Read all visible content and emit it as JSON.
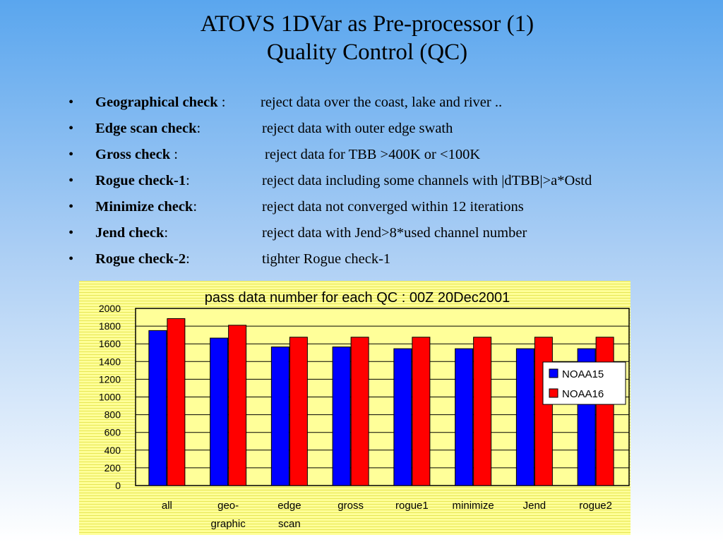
{
  "slide": {
    "title_line1": "ATOVS 1DVar as Pre-processor (1)",
    "title_line2": "Quality Control (QC)"
  },
  "bullets": [
    {
      "term": "Geographical check",
      "sep": " : ",
      "desc": "reject data over the coast, lake and river .."
    },
    {
      "term": "Edge scan check",
      "sep": ":",
      "desc": "reject data with outer edge swath"
    },
    {
      "term": "Gross check",
      "sep": " :",
      "desc": "reject data for TBB >400K or <100K"
    },
    {
      "term": "Rogue check-1",
      "sep": ":",
      "desc": "reject data including some channels with  |dTBB|>a*Ostd"
    },
    {
      "term": "Minimize check",
      "sep": ":",
      "desc": "reject data not converged within 12 iterations"
    },
    {
      "term": "Jend  check",
      "sep": ":",
      "desc": "reject data with Jend>8*used channel number"
    },
    {
      "term": "Rogue check-2",
      "sep": ":",
      "desc": "tighter Rogue check-1"
    }
  ],
  "bullet_glyph": "•",
  "chart_data": {
    "type": "bar",
    "title": "pass data number for each QC : 00Z 20Dec2001",
    "categories": [
      [
        "all"
      ],
      [
        "geo-",
        "graphic"
      ],
      [
        "edge",
        "scan"
      ],
      [
        "gross"
      ],
      [
        "rogue1"
      ],
      [
        "minimize"
      ],
      [
        "Jend"
      ],
      [
        "rogue2"
      ]
    ],
    "series": [
      {
        "name": "NOAA15",
        "color": "#0000ff",
        "values": [
          1750,
          1665,
          1565,
          1565,
          1545,
          1545,
          1545,
          1545
        ]
      },
      {
        "name": "NOAA16",
        "color": "#ff0000",
        "values": [
          1885,
          1810,
          1675,
          1675,
          1675,
          1675,
          1675,
          1675
        ]
      }
    ],
    "ylim": [
      0,
      2000
    ],
    "yticks": [
      0,
      200,
      400,
      600,
      800,
      1000,
      1200,
      1400,
      1600,
      1800,
      2000
    ],
    "grid": true,
    "legend_position": "right"
  }
}
